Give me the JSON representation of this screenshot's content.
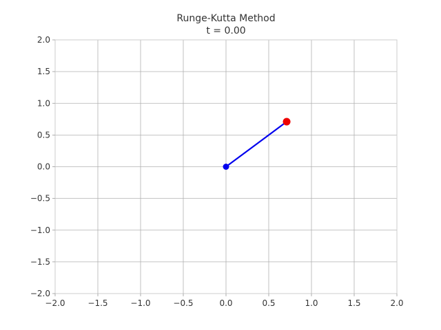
{
  "chart_data": {
    "type": "line",
    "title": "Runge-Kutta Method",
    "subtitle": "t = 0.00",
    "xlabel": "",
    "ylabel": "",
    "xlim": [
      -2.0,
      2.0
    ],
    "ylim": [
      -2.0,
      2.0
    ],
    "xticks": [
      -2.0,
      -1.5,
      -1.0,
      -0.5,
      0.0,
      0.5,
      1.0,
      1.5,
      2.0
    ],
    "yticks": [
      -2.0,
      -1.5,
      -1.0,
      -0.5,
      0.0,
      0.5,
      1.0,
      1.5,
      2.0
    ],
    "xtick_labels": [
      "−2.0",
      "−1.5",
      "−1.0",
      "−0.5",
      "0.0",
      "0.5",
      "1.0",
      "1.5",
      "2.0"
    ],
    "ytick_labels": [
      "−2.0",
      "−1.5",
      "−1.0",
      "−0.5",
      "0.0",
      "0.5",
      "1.0",
      "1.5",
      "2.0"
    ],
    "grid": true,
    "series": [
      {
        "x": [
          0.0,
          0.71
        ],
        "y": [
          0.0,
          0.71
        ],
        "color": "#0000ee"
      }
    ],
    "points": [
      {
        "x": 0.0,
        "y": 0.0,
        "color": "#0000ee"
      },
      {
        "x": 0.71,
        "y": 0.71,
        "color": "#ee0000"
      }
    ],
    "colors": {
      "grid": "#b0b0b0",
      "axes": "#cccccc",
      "text": "#333333"
    }
  }
}
